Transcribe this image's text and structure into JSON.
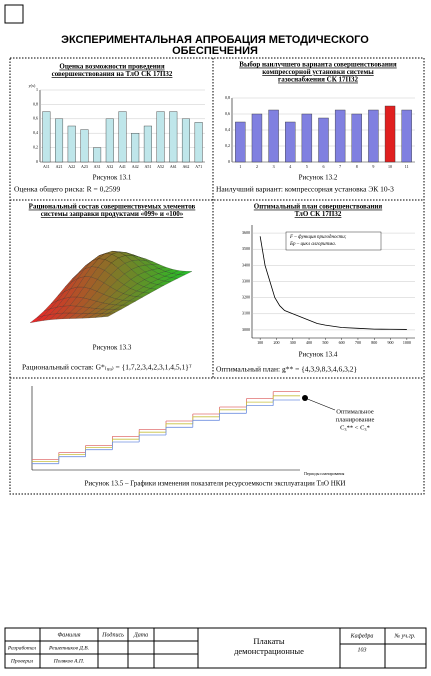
{
  "title": "ЭКСПЕРИМЕНТАЛЬНАЯ АПРОБАЦИЯ МЕТОДИЧЕСКОГО ОБЕСПЕЧЕНИЯ",
  "panels": [
    {
      "title": [
        "Оценка возможности проведения",
        "совершенствования на ТлО СК 17П32"
      ],
      "caption": "Рисунок 13.1",
      "note": "Оценка общего риска: R = 0,2599",
      "chart": {
        "type": "bar",
        "y_label": "y(x)",
        "categories": [
          "A11",
          "A21",
          "A22",
          "A23",
          "A31",
          "A32",
          "A41",
          "A42",
          "A51",
          "A52",
          "A61",
          "A62",
          "A71"
        ],
        "values": [
          0.7,
          0.6,
          0.5,
          0.45,
          0.2,
          0.6,
          0.7,
          0.4,
          0.5,
          0.7,
          0.7,
          0.6,
          0.55
        ],
        "color": "#bfe6ea",
        "ylim": [
          0,
          1
        ],
        "yticks": [
          0,
          {
            "value": 0.2,
            "label": "0,2"
          },
          {
            "value": 0.4,
            "label": "0,4"
          },
          {
            "value": 0.6,
            "label": "0,6"
          },
          {
            "value": 0.8,
            "label": "0,8"
          },
          1
        ]
      }
    },
    {
      "title": [
        "Выбор наилучшего варианта совершенствования",
        "компрессорной установки системы",
        "газоснабжения СК 17П32"
      ],
      "caption": "Рисунок 13.2",
      "note": "Наилучший вариант: компрессорная установка ЭК 10-3",
      "chart": {
        "type": "bar",
        "categories": [
          "1",
          "2",
          "3",
          "4",
          "5",
          "6",
          "7",
          "8",
          "9",
          "10",
          "11"
        ],
        "values": [
          0.5,
          0.6,
          0.65,
          0.5,
          0.6,
          0.55,
          0.65,
          0.6,
          0.65,
          0.7,
          0.65
        ],
        "colors": [
          "#8080e0",
          "#8080e0",
          "#8080e0",
          "#8080e0",
          "#8080e0",
          "#8080e0",
          "#8080e0",
          "#8080e0",
          "#8080e0",
          "#e02020",
          "#8080e0"
        ],
        "ylim": [
          0,
          0.8
        ],
        "yticks": [
          0,
          {
            "value": 0.2,
            "label": "0,2"
          },
          {
            "value": 0.4,
            "label": "0,4"
          },
          {
            "value": 0.6,
            "label": "0,6"
          },
          {
            "value": 0.8,
            "label": "0,8"
          }
        ]
      }
    },
    {
      "title": [
        "Рациональный состав совершенствуемых элементов",
        "системы заправки продуктами «099» и «100»"
      ],
      "caption": "Рисунок 13.3",
      "note": "Рациональный состав: G*₍₉₉₎ = {1,7,2,3,4,2,3,1,4,5,1}ᵀ"
    },
    {
      "title": [
        "Оптимальный план совершенствования",
        "ТлО СК 17П32"
      ],
      "caption": "Рисунок 13.4",
      "note": "Оптимальный план: g** = {4,3,9,8,3,4,6,3,2}",
      "chart": {
        "type": "line",
        "legend": [
          "F – функция пригодности;",
          "Бр – цикл алгоритма."
        ],
        "x": [
          100,
          130,
          160,
          190,
          220,
          250,
          300,
          350,
          400,
          450,
          500,
          600,
          700,
          800,
          900,
          1000
        ],
        "values": [
          3580,
          3400,
          3300,
          3200,
          3150,
          3120,
          3100,
          3080,
          3060,
          3040,
          3030,
          3015,
          3010,
          3005,
          3004,
          3003
        ],
        "color": "#000000",
        "xlim": [
          50,
          1050
        ],
        "xticks": [
          100,
          200,
          300,
          400,
          500,
          600,
          700,
          800,
          900,
          1000
        ],
        "ylim": [
          2950,
          3650
        ],
        "yticks": [
          3000,
          3100,
          3200,
          3300,
          3400,
          3500,
          3600
        ]
      }
    },
    {
      "caption": "Рисунок 13.5 – Графики изменения показателя ресурсоемкости эксплуатации ТлО НКИ",
      "annotation": [
        "Оптимальное",
        "планирование",
        "C₃** < C₃*"
      ],
      "chart": {
        "type": "step",
        "x_label": "Периоды планирования",
        "ylim": [
          0,
          120
        ],
        "series": [
          {
            "color": "#e07070",
            "values": [
              15,
              25,
              35,
              48,
              58,
              70,
              80,
              90,
              102,
              112
            ]
          },
          {
            "color": "#c8c040",
            "values": [
              12,
              22,
              32,
              44,
              54,
              66,
              76,
              86,
              97,
              106
            ]
          },
          {
            "color": "#7090e0",
            "values": [
              9,
              19,
              29,
              40,
              50,
              61,
              71,
              81,
              92,
              100
            ]
          }
        ]
      }
    }
  ],
  "stamp": {
    "headers": [
      "Фамилия",
      "Подпись",
      "Дата"
    ],
    "rows": [
      [
        "Разработал",
        "Решетников Д.В."
      ],
      [
        "Проверил",
        "Поляков А.П."
      ]
    ],
    "name": [
      "Плакаты",
      "демонстрационные"
    ],
    "dept_label": "Кафедра",
    "dept": "103",
    "group": "№ уч.гр."
  }
}
